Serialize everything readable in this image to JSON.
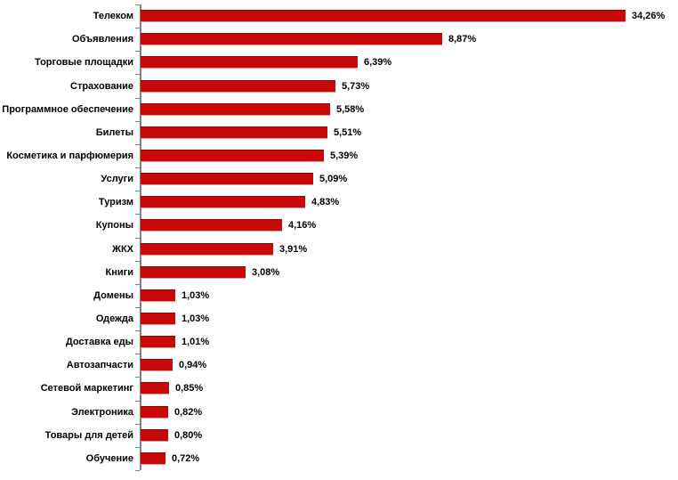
{
  "chart_data": {
    "type": "bar",
    "orientation": "horizontal",
    "title": "",
    "xlabel": "",
    "ylabel": "",
    "grid": false,
    "legend": false,
    "value_suffix": "%",
    "decimal_separator": ",",
    "first_bar_clipped_at_plot_edge": true,
    "categories": [
      "Телеком",
      "Объявления",
      "Торговые площадки",
      "Страхование",
      "Программное обеспечение",
      "Билеты",
      "Косметика и парфюмерия",
      "Услуги",
      "Туризм",
      "Купоны",
      "ЖКХ",
      "Книги",
      "Домены",
      "Одежда",
      "Доставка еды",
      "Автозапчасти",
      "Сетевой маркетинг",
      "Электроника",
      "Товары для детей",
      "Обучение"
    ],
    "values": [
      34.26,
      8.87,
      6.39,
      5.73,
      5.58,
      5.51,
      5.39,
      5.09,
      4.83,
      4.16,
      3.91,
      3.08,
      1.03,
      1.03,
      1.01,
      0.94,
      0.85,
      0.82,
      0.8,
      0.72
    ],
    "value_labels": [
      "34,26%",
      "8,87%",
      "6,39%",
      "5,73%",
      "5,58%",
      "5,51%",
      "5,39%",
      "5,09%",
      "4,83%",
      "4,16%",
      "3,91%",
      "3,08%",
      "1,03%",
      "1,03%",
      "1,01%",
      "0,94%",
      "0,85%",
      "0,82%",
      "0,80%",
      "0,72%"
    ]
  },
  "style": {
    "bar_fill": "#C90909",
    "bar_border_top": "#8F0505",
    "bar_border_bottom": "#E89B9B",
    "axis_color": "#808080",
    "text_color": "#000000",
    "background": "#FFFFFF"
  }
}
